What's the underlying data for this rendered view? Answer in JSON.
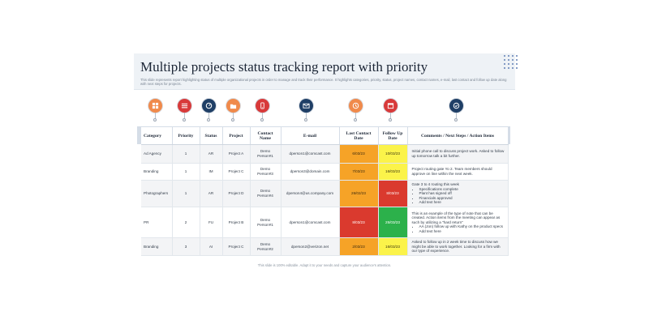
{
  "header": {
    "title": "Multiple projects status tracking report with priority",
    "subtitle": "This slide represents report highlighting status of multiple organizational projects in order to manage and track their performance. It highlights categories, priority, status, project names, contact names, e-mail, last contact and follow up date along with next steps for projects."
  },
  "icons": [
    {
      "name": "category-icon",
      "color": "#f08a4b"
    },
    {
      "name": "priority-list-icon",
      "color": "#d83a3a"
    },
    {
      "name": "status-gauge-icon",
      "color": "#1f3f66"
    },
    {
      "name": "project-folder-icon",
      "color": "#f08a4b"
    },
    {
      "name": "contact-phone-icon",
      "color": "#d83a3a"
    },
    {
      "name": "email-icon",
      "color": "#1f3f66"
    },
    {
      "name": "last-contact-icon",
      "color": "#f08a4b"
    },
    {
      "name": "follow-up-calendar-icon",
      "color": "#d83a3a"
    },
    {
      "name": "next-steps-icon",
      "color": "#1f3f66"
    }
  ],
  "table": {
    "headers": [
      "Category",
      "Priority",
      "Status",
      "Project",
      "Contact Name",
      "E-mail",
      "Last Contact Date",
      "Follow Up Date",
      "Comments / Next Steps / Action Items"
    ],
    "rows": [
      {
        "category": "Ad Agency",
        "priority": "1",
        "status": "AR",
        "project": "Project A",
        "contact": "Demo Person#1",
        "email": "dperson1@comcast.com",
        "last_contact": "6/03/23",
        "last_color": "orange",
        "follow_up": "10/03/23",
        "follow_color": "yellow",
        "comment": "Initial phone call to discuss project work. Asked to follow up tomorrow talk a bit further.",
        "bullets": []
      },
      {
        "category": "Branding",
        "priority": "1",
        "status": "IM",
        "project": "Project C",
        "contact": "Demo Person#3",
        "email": "dperson3@domain.com",
        "last_contact": "7/03/23",
        "last_color": "orange",
        "follow_up": "16/03/23",
        "follow_color": "yellow",
        "comment": "Project routing gate Yo 2. Team members should approve on line within the next week.",
        "bullets": []
      },
      {
        "category": "Photographers",
        "priority": "1",
        "status": "AR",
        "project": "Project D",
        "contact": "Demo Person#4",
        "email": "dperson4@us.company.com",
        "last_contact": "26/02/23",
        "last_color": "orange",
        "follow_up": "8/03/23",
        "follow_color": "red",
        "comment": "Gate 3 to 4 routing this week",
        "bullets": [
          "Specifications complete",
          "Plant has signed off",
          "Financials approved",
          "Add text here"
        ]
      },
      {
        "category": "PR",
        "priority": "2",
        "status": "FU",
        "project": "Project B",
        "contact": "Demo Person#1",
        "email": "dperson1@comcast.com",
        "last_contact": "8/03/23",
        "last_color": "red",
        "follow_up": "25/03/23",
        "follow_color": "green",
        "comment": "This is an example of the type of note that can be created. Action items from the meeting can appear as such by utilizing a \"hard return\"",
        "bullets": [
          "AA (Jon) follow up with Kathy on the product specs",
          "Add text here"
        ]
      },
      {
        "category": "Branding",
        "priority": "3",
        "status": "AI",
        "project": "Project C",
        "contact": "Demo Person#2",
        "email": "dperson2@verizon.net",
        "last_contact": "2/03/23",
        "last_color": "orange",
        "follow_up": "16/03/23",
        "follow_color": "yellow",
        "comment": "Asked to follow up in 2 week time to discuss how we might be able to work together. Looking for a firm with our type of experience.",
        "bullets": []
      }
    ]
  },
  "footer": "This slide is 100% editable. Adapt it to your needs and capture your audience's attention."
}
